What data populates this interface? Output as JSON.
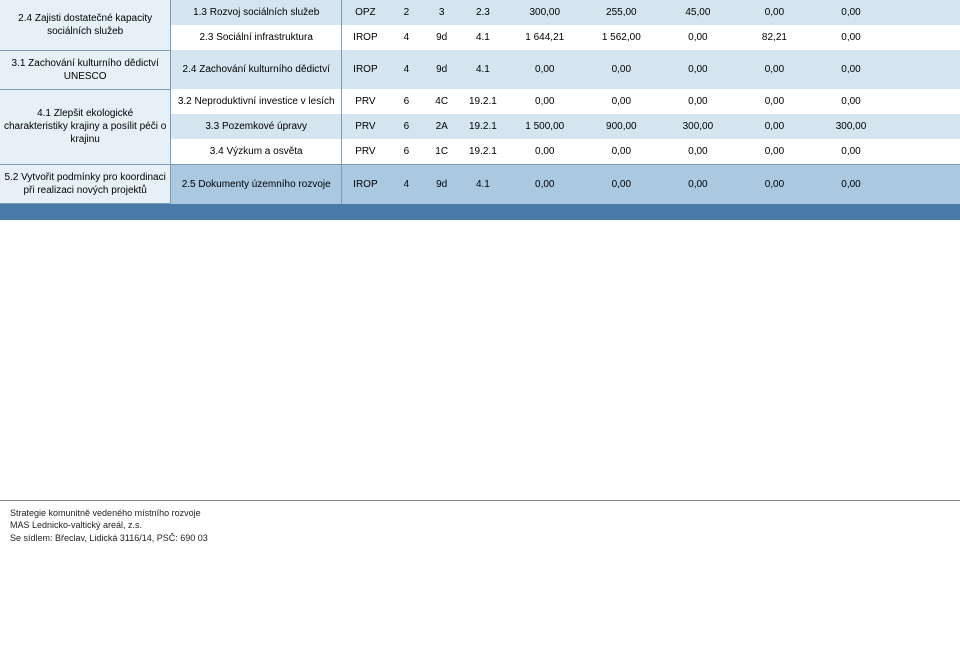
{
  "rows": [
    {
      "left": "2.4 Zajisti dostatečné kapacity sociálních služeb",
      "leftRowspan": 2,
      "leftClass": "blue-light border-r border-b",
      "sub": [
        {
          "desc": "1.3 Rozvoj sociálních služeb",
          "prog": "OPZ",
          "n1": "2",
          "n2": "3",
          "n3": "2.3",
          "v1": "300,00",
          "v2": "255,00",
          "v3": "45,00",
          "v4": "0,00",
          "v5": "0,00",
          "rowClass": "blue-med"
        },
        {
          "desc": "2.3 Sociální infrastruktura",
          "prog": "IROP",
          "n1": "4",
          "n2": "9d",
          "n3": "4.1",
          "v1": "1 644,21",
          "v2": "1 562,00",
          "v3": "0,00",
          "v4": "82,21",
          "v5": "0,00",
          "rowClass": ""
        }
      ]
    },
    {
      "left": "3.1 Zachování kulturního dědictví UNESCO",
      "leftRowspan": 1,
      "leftClass": "blue-light border-r border-b border-t",
      "sub": [
        {
          "desc": "2.4 Zachování kulturního dědictví",
          "prog": "IROP",
          "n1": "4",
          "n2": "9d",
          "n3": "4.1",
          "v1": "0,00",
          "v2": "0,00",
          "v3": "0,00",
          "v4": "0,00",
          "v5": "0,00",
          "rowClass": "blue-med"
        }
      ]
    },
    {
      "left": "4.1 Zlepšit ekologické charakteristiky krajiny a posílit péči o krajinu",
      "leftRowspan": 3,
      "leftClass": "blue-light border-r border-b border-t",
      "sub": [
        {
          "desc": "3.2 Neproduktivní investice v lesích",
          "prog": "PRV",
          "n1": "6",
          "n2": "4C",
          "n3": "19.2.1",
          "v1": "0,00",
          "v2": "0,00",
          "v3": "0,00",
          "v4": "0,00",
          "v5": "0,00",
          "rowClass": ""
        },
        {
          "desc": "3.3 Pozemkové úpravy",
          "prog": "PRV",
          "n1": "6",
          "n2": "2A",
          "n3": "19.2.1",
          "v1": "1 500,00",
          "v2": "900,00",
          "v3": "300,00",
          "v4": "0,00",
          "v5": "300,00",
          "rowClass": "blue-med"
        },
        {
          "desc": "3.4 Výzkum a osvěta",
          "prog": "PRV",
          "n1": "6",
          "n2": "1C",
          "n3": "19.2.1",
          "v1": "0,00",
          "v2": "0,00",
          "v3": "0,00",
          "v4": "0,00",
          "v5": "0,00",
          "rowClass": ""
        }
      ]
    },
    {
      "left": "5.2 Vytvořit podmínky pro koordinaci při realizaci nových projektů",
      "leftRowspan": 1,
      "leftClass": "blue-light border-r border-b border-t",
      "sub": [
        {
          "desc": "2.5 Dokumenty územního rozvoje",
          "prog": "IROP",
          "n1": "4",
          "n2": "9d",
          "n3": "4.1",
          "v1": "0,00",
          "v2": "0,00",
          "v3": "0,00",
          "v4": "0,00",
          "v5": "0,00",
          "rowClass": "blue-row border-t"
        }
      ]
    }
  ],
  "footer": {
    "line1": "Strategie komunitně vedeného místního rozvoje",
    "line2": "MAS  Lednicko-valtický areál, z.s.",
    "line3": "Se sídlem: Břeclav, Lidická 3116/14, PSČ:  690 03"
  }
}
